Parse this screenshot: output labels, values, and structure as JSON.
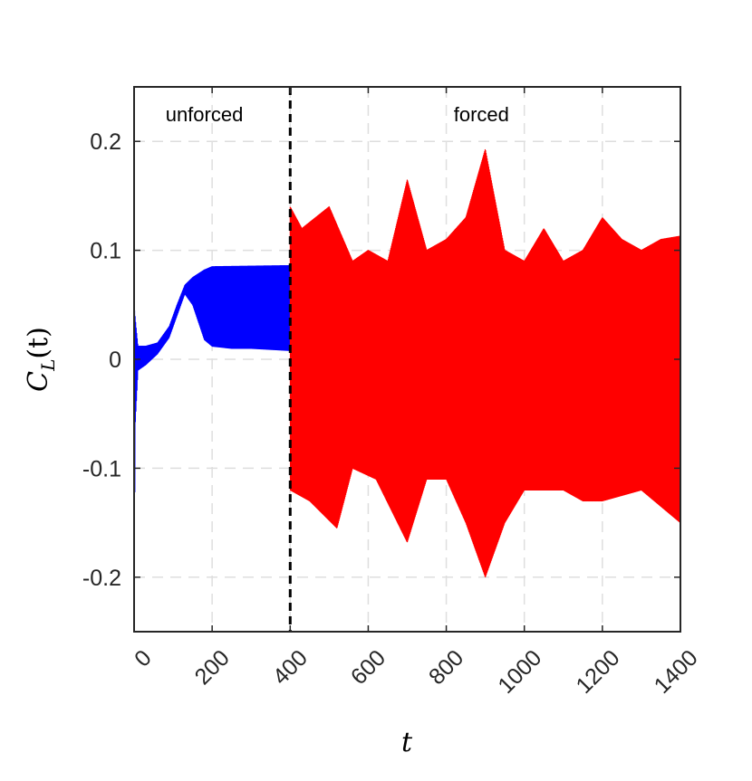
{
  "chart_data": {
    "type": "line",
    "xlabel": "t",
    "ylabel": {
      "main": "C",
      "sub": "L",
      "arg": "(t)"
    },
    "xlim": [
      0,
      1400
    ],
    "ylim": [
      -0.25,
      0.25
    ],
    "x_ticks": [
      0,
      200,
      400,
      600,
      800,
      1000,
      1200,
      1400
    ],
    "x_tick_labels": [
      "0",
      "200",
      "400",
      "600",
      "800",
      "1000",
      "1200",
      "1400"
    ],
    "y_ticks": [
      -0.2,
      -0.1,
      0,
      0.1,
      0.2
    ],
    "y_tick_labels": [
      "-0.2",
      "-0.1",
      "0",
      "0.1",
      "0.2"
    ],
    "grid": true,
    "divider_x": 400,
    "region_labels": [
      {
        "text": "unforced",
        "x": 180
      },
      {
        "text": "forced",
        "x": 890
      }
    ],
    "series": [
      {
        "color": "#0000ff",
        "segment": "unforced",
        "x_range": [
          0,
          400
        ],
        "envelope_upper": [
          [
            0,
            0.05
          ],
          [
            5,
            0.03
          ],
          [
            10,
            0.012
          ],
          [
            30,
            0.012
          ],
          [
            60,
            0.015
          ],
          [
            90,
            0.03
          ],
          [
            110,
            0.05
          ],
          [
            130,
            0.068
          ],
          [
            150,
            0.075
          ],
          [
            180,
            0.082
          ],
          [
            200,
            0.085
          ],
          [
            400,
            0.086
          ]
        ],
        "envelope_lower": [
          [
            0,
            -0.25
          ],
          [
            3,
            -0.06
          ],
          [
            10,
            -0.01
          ],
          [
            30,
            -0.005
          ],
          [
            60,
            0.005
          ],
          [
            90,
            0.02
          ],
          [
            110,
            0.04
          ],
          [
            130,
            0.06
          ],
          [
            150,
            0.05
          ],
          [
            180,
            0.018
          ],
          [
            200,
            0.012
          ],
          [
            250,
            0.01
          ],
          [
            300,
            0.01
          ],
          [
            400,
            0.008
          ]
        ]
      },
      {
        "color": "#ff0000",
        "segment": "forced",
        "x_range": [
          400,
          1400
        ],
        "envelope_upper": [
          [
            400,
            0.14
          ],
          [
            430,
            0.12
          ],
          [
            500,
            0.14
          ],
          [
            560,
            0.09
          ],
          [
            600,
            0.1
          ],
          [
            650,
            0.09
          ],
          [
            700,
            0.165
          ],
          [
            750,
            0.1
          ],
          [
            800,
            0.11
          ],
          [
            850,
            0.13
          ],
          [
            900,
            0.193
          ],
          [
            950,
            0.1
          ],
          [
            1000,
            0.09
          ],
          [
            1050,
            0.12
          ],
          [
            1100,
            0.09
          ],
          [
            1150,
            0.1
          ],
          [
            1200,
            0.13
          ],
          [
            1250,
            0.11
          ],
          [
            1300,
            0.1
          ],
          [
            1350,
            0.11
          ],
          [
            1400,
            0.113
          ]
        ],
        "envelope_lower": [
          [
            400,
            -0.12
          ],
          [
            450,
            -0.13
          ],
          [
            520,
            -0.155
          ],
          [
            560,
            -0.1
          ],
          [
            620,
            -0.11
          ],
          [
            700,
            -0.168
          ],
          [
            750,
            -0.11
          ],
          [
            800,
            -0.11
          ],
          [
            850,
            -0.15
          ],
          [
            900,
            -0.2
          ],
          [
            950,
            -0.15
          ],
          [
            1000,
            -0.12
          ],
          [
            1050,
            -0.12
          ],
          [
            1100,
            -0.12
          ],
          [
            1150,
            -0.13
          ],
          [
            1200,
            -0.13
          ],
          [
            1300,
            -0.12
          ],
          [
            1400,
            -0.15
          ]
        ]
      }
    ]
  }
}
